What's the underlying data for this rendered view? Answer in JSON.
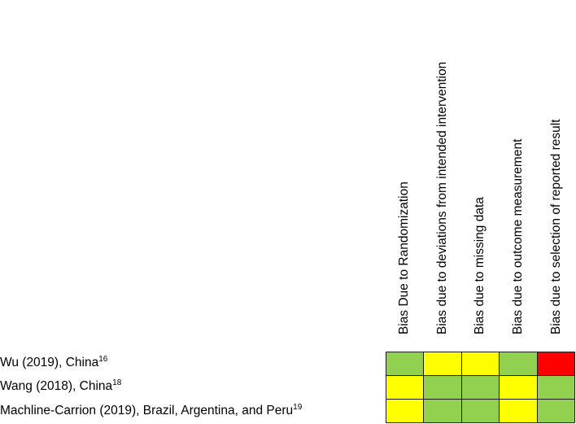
{
  "chart_data": {
    "type": "heatmap",
    "title": "",
    "columns": [
      "Bias Due to Randomization",
      "Bias due to deviations from intended intervention",
      "Bias due to missing data",
      "Bias due to outcome measurement",
      "Bias due to selection of reported result"
    ],
    "rows": [
      {
        "label": "Wu (2019), China",
        "ref": "16"
      },
      {
        "label": "Wang (2018), China",
        "ref": "18"
      },
      {
        "label": "Machline-Carrion (2019), Brazil, Argentina, and Peru",
        "ref": "19"
      }
    ],
    "values": [
      [
        "low",
        "some concerns",
        "some concerns",
        "low",
        "high"
      ],
      [
        "some concerns",
        "low",
        "low",
        "some concerns",
        "low"
      ],
      [
        "some concerns",
        "low",
        "low",
        "some concerns",
        "low"
      ]
    ],
    "legend": {
      "low": "#92D050",
      "some concerns": "#FFFF00",
      "high": "#FF0000"
    },
    "grid": true
  },
  "colors": {
    "low": "#92D050",
    "some concerns": "#FFFF00",
    "high": "#FF0000",
    "border": "#1f1f1f"
  }
}
